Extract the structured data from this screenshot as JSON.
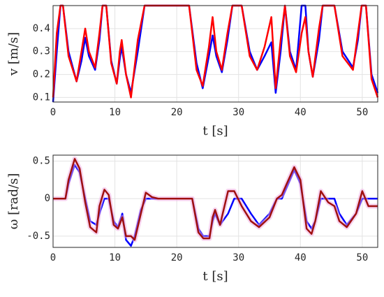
{
  "chart_data": [
    {
      "type": "line",
      "ylabel": "v [m/s]",
      "xlabel": "t [s]",
      "x": [
        0,
        0.6,
        1.2,
        1.6,
        2.5,
        3.8,
        4.6,
        5.2,
        5.8,
        6.8,
        7.5,
        8.0,
        8.6,
        9.4,
        10.3,
        10.8,
        11.1,
        11.8,
        12.6,
        13.7,
        14.8,
        18,
        22,
        23.2,
        24.2,
        25.2,
        25.8,
        26.4,
        27.3,
        28.2,
        29.0,
        30.5,
        31.8,
        33.0,
        34.2,
        35.3,
        36.0,
        36.8,
        37.5,
        38.3,
        39.3,
        40.2,
        40.8,
        41.3,
        42.0,
        43.0,
        43.6,
        45.5,
        46.8,
        48.5,
        49.3,
        49.9,
        50.6,
        51.5,
        52.5
      ],
      "series": [
        {
          "color": "#0000ff",
          "values": [
            0.08,
            0.3,
            0.5,
            0.5,
            0.3,
            0.17,
            0.26,
            0.36,
            0.28,
            0.22,
            0.35,
            0.5,
            0.5,
            0.26,
            0.16,
            0.27,
            0.32,
            0.2,
            0.12,
            0.3,
            0.5,
            0.5,
            0.5,
            0.25,
            0.14,
            0.28,
            0.37,
            0.28,
            0.21,
            0.35,
            0.5,
            0.5,
            0.3,
            0.22,
            0.28,
            0.34,
            0.12,
            0.3,
            0.5,
            0.3,
            0.22,
            0.5,
            0.5,
            0.3,
            0.19,
            0.35,
            0.5,
            0.5,
            0.3,
            0.23,
            0.35,
            0.5,
            0.5,
            0.2,
            0.12
          ]
        },
        {
          "color": "#ff0000",
          "values": [
            0.1,
            0.38,
            0.5,
            0.5,
            0.28,
            0.17,
            0.3,
            0.4,
            0.3,
            0.23,
            0.38,
            0.5,
            0.5,
            0.25,
            0.16,
            0.3,
            0.35,
            0.2,
            0.1,
            0.35,
            0.5,
            0.5,
            0.5,
            0.22,
            0.15,
            0.32,
            0.45,
            0.3,
            0.22,
            0.38,
            0.5,
            0.5,
            0.28,
            0.22,
            0.32,
            0.45,
            0.14,
            0.35,
            0.5,
            0.28,
            0.21,
            0.38,
            0.45,
            0.3,
            0.19,
            0.4,
            0.5,
            0.5,
            0.28,
            0.22,
            0.38,
            0.5,
            0.5,
            0.18,
            0.1
          ]
        }
      ],
      "xlim": [
        0,
        52.5
      ],
      "xticks": [
        0,
        10,
        20,
        30,
        40,
        50
      ],
      "ylim": [
        0.08,
        0.5
      ],
      "yticks": [
        0.1,
        0.2,
        0.3,
        0.4
      ],
      "grid": true
    },
    {
      "type": "line",
      "ylabel": "ω [rad/s]",
      "xlabel": "t [s]",
      "x": [
        0,
        2,
        2.5,
        3.5,
        4.3,
        5.2,
        6,
        7,
        7.5,
        8.3,
        9.0,
        9.8,
        10.5,
        11.2,
        11.8,
        12.6,
        13.2,
        14.2,
        15,
        16,
        17,
        20,
        22.5,
        23.5,
        24.3,
        25.3,
        25.8,
        26.2,
        27,
        28.3,
        29.3,
        30.5,
        32,
        33.3,
        35,
        36.2,
        37,
        37.8,
        39,
        40,
        41,
        41.8,
        42.4,
        43.3,
        44.5,
        45.5,
        46.3,
        47.5,
        49,
        50,
        51,
        52.5
      ],
      "series": [
        {
          "color": "#0000ff",
          "values": [
            0,
            0,
            0.2,
            0.45,
            0.35,
            0,
            -0.3,
            -0.35,
            -0.2,
            0,
            0,
            -0.3,
            -0.38,
            -0.2,
            -0.55,
            -0.63,
            -0.5,
            -0.15,
            0,
            0,
            0,
            0,
            0,
            -0.4,
            -0.5,
            -0.5,
            -0.3,
            -0.2,
            -0.35,
            -0.2,
            0,
            0,
            -0.2,
            -0.35,
            -0.2,
            0,
            0,
            0.15,
            0.38,
            0.2,
            -0.3,
            -0.4,
            -0.3,
            0,
            0,
            0,
            -0.2,
            -0.35,
            -0.2,
            0,
            0,
            0
          ]
        },
        {
          "color": "#a01010",
          "values": [
            0,
            0,
            0.25,
            0.53,
            0.4,
            -0.05,
            -0.38,
            -0.45,
            -0.1,
            0.12,
            0.05,
            -0.35,
            -0.4,
            -0.25,
            -0.5,
            -0.5,
            -0.55,
            -0.2,
            0.08,
            0.02,
            0,
            0,
            0,
            -0.45,
            -0.53,
            -0.53,
            -0.25,
            -0.15,
            -0.35,
            0.1,
            0.1,
            -0.1,
            -0.3,
            -0.38,
            -0.25,
            0,
            0.05,
            0.2,
            0.42,
            0.25,
            -0.4,
            -0.47,
            -0.3,
            0.1,
            -0.05,
            -0.1,
            -0.3,
            -0.38,
            -0.2,
            0.1,
            -0.1,
            -0.1
          ]
        }
      ],
      "xlim": [
        0,
        52.5
      ],
      "xticks": [
        0,
        10,
        20,
        30,
        40,
        50
      ],
      "ylim": [
        -0.65,
        0.58
      ],
      "yticks": [
        -0.5,
        0,
        0.5
      ],
      "grid": true
    }
  ]
}
